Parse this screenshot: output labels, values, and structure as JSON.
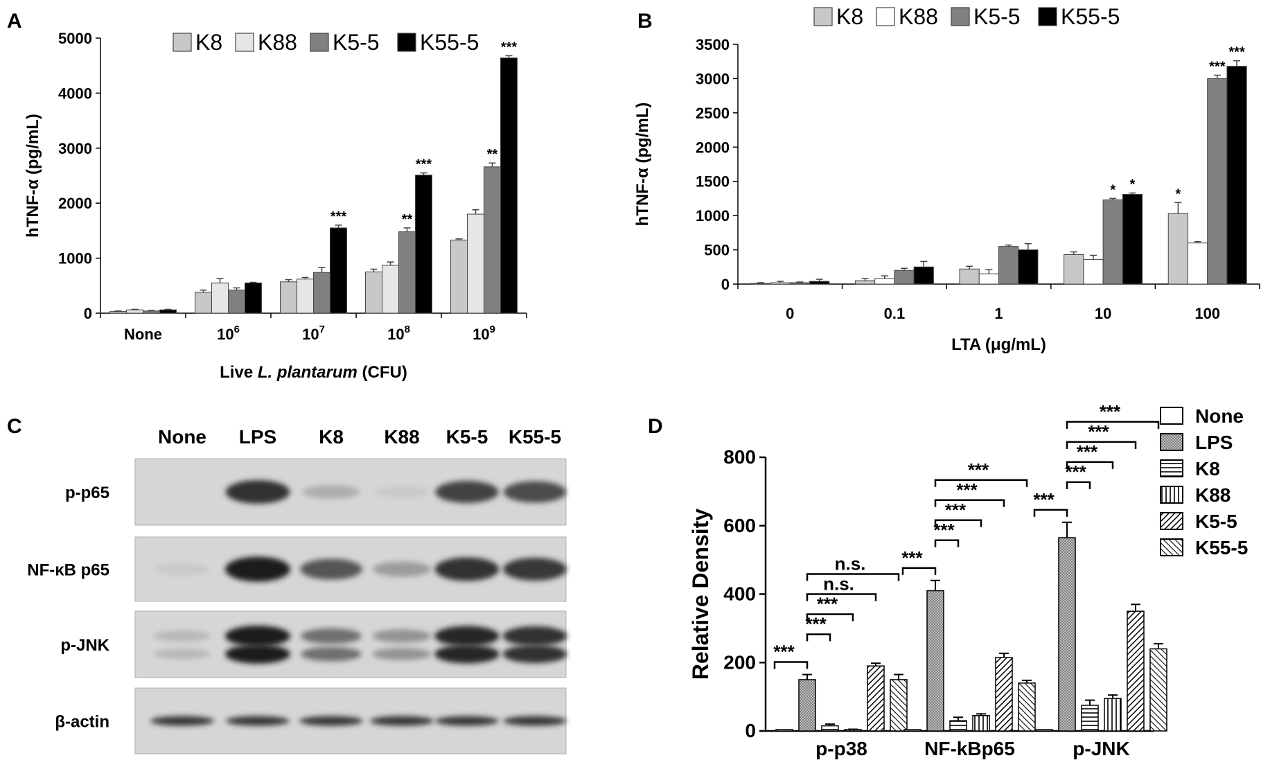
{
  "chart_data": [
    {
      "panel": "A",
      "type": "bar",
      "xlabel_prefix": "Live ",
      "xlabel_italic": "L. plantarum",
      "xlabel_suffix": " (CFU)",
      "ylabel": "hTNF-α (pg/mL)",
      "ylim": [
        0,
        5000
      ],
      "yticks": [
        0,
        1000,
        2000,
        3000,
        4000,
        5000
      ],
      "categories": [
        {
          "base": "None",
          "exp": ""
        },
        {
          "base": "10",
          "exp": "6"
        },
        {
          "base": "10",
          "exp": "7"
        },
        {
          "base": "10",
          "exp": "8"
        },
        {
          "base": "10",
          "exp": "9"
        }
      ],
      "series": [
        {
          "name": "K8",
          "color": "#c8c8c8",
          "values": [
            30,
            380,
            570,
            750,
            1330
          ],
          "errors": [
            10,
            40,
            40,
            50,
            20
          ],
          "sig": [
            "",
            "",
            "",
            "",
            ""
          ]
        },
        {
          "name": "K88",
          "color": "#e6e6e6",
          "values": [
            60,
            550,
            620,
            870,
            1800
          ],
          "errors": [
            10,
            80,
            30,
            60,
            80
          ],
          "sig": [
            "",
            "",
            "",
            "",
            ""
          ]
        },
        {
          "name": "K5-5",
          "color": "#808080",
          "values": [
            40,
            420,
            740,
            1480,
            2660
          ],
          "errors": [
            10,
            40,
            90,
            70,
            70
          ],
          "sig": [
            "",
            "",
            "",
            "**",
            "**"
          ]
        },
        {
          "name": "K55-5",
          "color": "#000000",
          "values": [
            60,
            550,
            1550,
            2510,
            4640
          ],
          "errors": [
            10,
            10,
            50,
            40,
            40
          ],
          "sig": [
            "",
            "",
            "***",
            "***",
            "***"
          ]
        }
      ],
      "legend": "top",
      "grid": false
    },
    {
      "panel": "B",
      "type": "bar",
      "xlabel": "LTA (μg/mL)",
      "ylabel": "hTNF-α (pg/mL)",
      "ylim": [
        0,
        3500
      ],
      "yticks": [
        0,
        500,
        1000,
        1500,
        2000,
        2500,
        3000,
        3500
      ],
      "categories": [
        "0",
        "0.1",
        "1",
        "10",
        "100"
      ],
      "series": [
        {
          "name": "K8",
          "color": "#c8c8c8",
          "values": [
            10,
            50,
            220,
            430,
            1030
          ],
          "errors": [
            10,
            30,
            40,
            40,
            160
          ],
          "sig": [
            "",
            "",
            "",
            "",
            "*"
          ]
        },
        {
          "name": "K88",
          "color": "#ffffff",
          "values": [
            20,
            80,
            150,
            360,
            600
          ],
          "errors": [
            20,
            40,
            60,
            60,
            20
          ],
          "sig": [
            "",
            "",
            "",
            "",
            ""
          ]
        },
        {
          "name": "K5-5",
          "color": "#808080",
          "values": [
            20,
            200,
            550,
            1230,
            3000
          ],
          "errors": [
            10,
            30,
            20,
            20,
            50
          ],
          "sig": [
            "",
            "",
            "",
            "*",
            "***"
          ]
        },
        {
          "name": "K55-5",
          "color": "#000000",
          "values": [
            40,
            250,
            500,
            1310,
            3180
          ],
          "errors": [
            30,
            80,
            90,
            20,
            80
          ],
          "sig": [
            "",
            "",
            "",
            "*",
            "***"
          ]
        }
      ],
      "legend": "top",
      "grid": false
    },
    {
      "panel": "D",
      "type": "bar",
      "ylabel": "Relative Density",
      "ylim": [
        0,
        800
      ],
      "yticks": [
        0,
        200,
        400,
        600,
        800
      ],
      "categories": [
        "p-p38",
        "NF-kBp65",
        "p-JNK"
      ],
      "series": [
        {
          "name": "None",
          "pattern": "none",
          "values": [
            0,
            0,
            0
          ],
          "errors": [
            0,
            0,
            0
          ]
        },
        {
          "name": "LPS",
          "pattern": "dots",
          "values": [
            150,
            410,
            565
          ],
          "errors": [
            15,
            30,
            45
          ]
        },
        {
          "name": "K8",
          "pattern": "hlines",
          "values": [
            15,
            30,
            75
          ],
          "errors": [
            5,
            10,
            15
          ]
        },
        {
          "name": "K88",
          "pattern": "vlines",
          "values": [
            3,
            45,
            95
          ],
          "errors": [
            2,
            5,
            10
          ]
        },
        {
          "name": "K5-5",
          "pattern": "diag",
          "values": [
            190,
            215,
            350
          ],
          "errors": [
            8,
            12,
            20
          ]
        },
        {
          "name": "K55-5",
          "pattern": "diag2",
          "values": [
            150,
            140,
            240
          ],
          "errors": [
            15,
            8,
            15
          ]
        }
      ],
      "brackets": [
        {
          "group": 0,
          "from": 0,
          "to": 1,
          "label": "***"
        },
        {
          "group": 0,
          "from": 1,
          "to": 2,
          "label": "***"
        },
        {
          "group": 0,
          "from": 1,
          "to": 3,
          "label": "***"
        },
        {
          "group": 0,
          "from": 1,
          "to": 4,
          "label": "n.s."
        },
        {
          "group": 0,
          "from": 1,
          "to": 5,
          "label": "n.s."
        },
        {
          "group": 1,
          "from": 0,
          "to": 1,
          "label": "***"
        },
        {
          "group": 1,
          "from": 1,
          "to": 2,
          "label": "***"
        },
        {
          "group": 1,
          "from": 1,
          "to": 3,
          "label": "***"
        },
        {
          "group": 1,
          "from": 1,
          "to": 4,
          "label": "***"
        },
        {
          "group": 1,
          "from": 1,
          "to": 5,
          "label": "***"
        },
        {
          "group": 2,
          "from": 0,
          "to": 1,
          "label": "***"
        },
        {
          "group": 2,
          "from": 1,
          "to": 2,
          "label": "***"
        },
        {
          "group": 2,
          "from": 1,
          "to": 3,
          "label": "***"
        },
        {
          "group": 2,
          "from": 1,
          "to": 4,
          "label": "***"
        },
        {
          "group": 2,
          "from": 1,
          "to": 5,
          "label": "***"
        }
      ],
      "legend": "right",
      "grid": false
    }
  ],
  "panel_c": {
    "letter": "C",
    "columns": [
      "None",
      "LPS",
      "K8",
      "K88",
      "K5-5",
      "K55-5"
    ],
    "rows": [
      {
        "label": "p-p65",
        "intensities": [
          0.0,
          0.9,
          0.2,
          0.05,
          0.8,
          0.75
        ]
      },
      {
        "label": "NF-κB p65",
        "intensities": [
          0.05,
          1.0,
          0.7,
          0.3,
          0.9,
          0.85
        ]
      },
      {
        "label": "p-JNK",
        "intensities": [
          0.15,
          1.0,
          0.55,
          0.35,
          0.95,
          0.9
        ]
      },
      {
        "label": "β-actin",
        "intensities": [
          0.85,
          0.85,
          0.85,
          0.85,
          0.85,
          0.85
        ]
      }
    ]
  }
}
